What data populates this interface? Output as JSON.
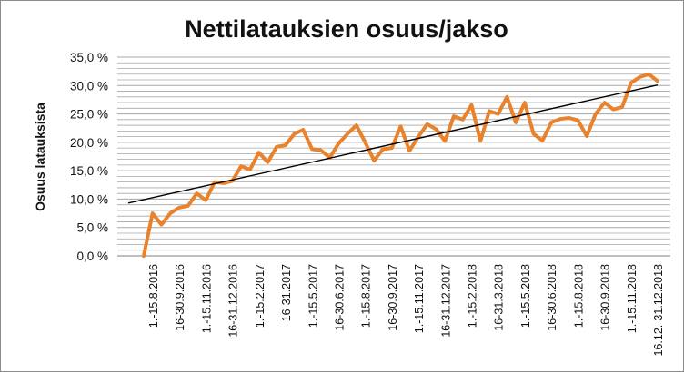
{
  "chart_data": {
    "type": "line",
    "title": "Nettilatauksien osuus/jakso",
    "ylabel": "Osuus latauksista",
    "xlabel": "",
    "ylim": [
      0,
      35
    ],
    "yticks": [
      "0,0 %",
      "5,0 %",
      "10,0 %",
      "15,0 %",
      "20,0 %",
      "25,0 %",
      "30,0 %",
      "35,0 %"
    ],
    "grid": true,
    "legend": "none",
    "colors": {
      "series": "#E8822C",
      "trend": "#000000",
      "grid": "#A6A6A6"
    },
    "x_labels": [
      "1.-15.8.2016",
      "16-30.9.2016",
      "1.-15.11.2016",
      "16-31.12.2016",
      "1.-15.2.2017",
      "16-31.2017",
      "1.-15.5.2017",
      "16-30.6.2017",
      "1.-15.8.2017",
      "16-30.9.2017",
      "1.-15.11.2017",
      "16-31.12.2017",
      "1.-15.2.2018",
      "16-31.3.2018",
      "1.-15.5.2018",
      "16-30.6.2018",
      "1.-15.8.2018",
      "16-30.9.2018",
      "1.-15.11.2018",
      "16.12.-31.12.2018"
    ],
    "series": [
      {
        "type": "line",
        "values": [
          0.0,
          7.5,
          5.5,
          7.5,
          8.5,
          8.8,
          11.0,
          9.8,
          13.0,
          12.8,
          13.2,
          15.8,
          15.2,
          18.2,
          16.5,
          19.2,
          19.5,
          21.5,
          22.2,
          18.8,
          18.6,
          17.3,
          19.8,
          21.5,
          23.0,
          20.0,
          16.8,
          18.8,
          19.0,
          22.8,
          18.5,
          21.0,
          23.2,
          22.3,
          20.2,
          24.6,
          24.0,
          26.6,
          20.2,
          25.5,
          25.0,
          28.0,
          23.5,
          27.0,
          21.5,
          20.3,
          23.5,
          24.1,
          24.3,
          23.9,
          21.1,
          25.0,
          27.0,
          25.8,
          26.2,
          30.5,
          31.5,
          32.0,
          30.8
        ]
      },
      {
        "type": "linear-trendline",
        "start": 9.3,
        "end": 30.1
      }
    ]
  }
}
